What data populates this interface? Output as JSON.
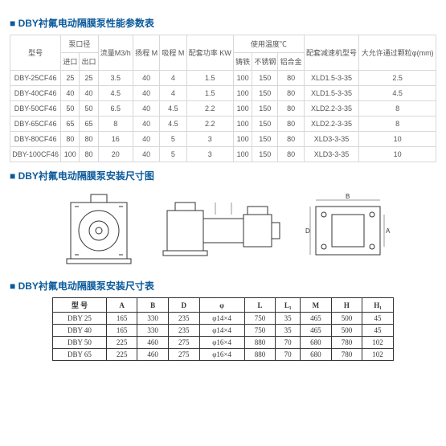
{
  "titles": {
    "perf": "DBY衬氟电动隔膜泵性能参数表",
    "dim_diagram": "DBY衬氟电动隔膜泵安装尺寸图",
    "dim_table": "DBY衬氟电动隔膜泵安装尺寸表"
  },
  "perf_header": {
    "model": "型号",
    "caliber": "泵口径",
    "in": "进口",
    "out": "出口",
    "flow": "流量M3/h",
    "head": "扬程 M",
    "suction": "吸程 M",
    "power": "配套功率 KW",
    "temp": "使用温度℃",
    "t1": "铸铁",
    "t2": "不锈钢",
    "t3": "铝合金",
    "reducer": "配套减速机型号",
    "particle": "大允许通过颗粒φ(mm)"
  },
  "perf_rows": [
    {
      "m": "DBY-25CF46",
      "in": "25",
      "out": "25",
      "flow": "3.5",
      "head": "40",
      "suc": "4",
      "pow": "1.5",
      "t1": "100",
      "t2": "150",
      "t3": "80",
      "red": "XLD1.5-3-35",
      "par": "2.5"
    },
    {
      "m": "DBY-40CF46",
      "in": "40",
      "out": "40",
      "flow": "4.5",
      "head": "40",
      "suc": "4",
      "pow": "1.5",
      "t1": "100",
      "t2": "150",
      "t3": "80",
      "red": "XLD1.5-3-35",
      "par": "4.5"
    },
    {
      "m": "DBY-50CF46",
      "in": "50",
      "out": "50",
      "flow": "6.5",
      "head": "40",
      "suc": "4.5",
      "pow": "2.2",
      "t1": "100",
      "t2": "150",
      "t3": "80",
      "red": "XLD2.2-3-35",
      "par": "8"
    },
    {
      "m": "DBY-65CF46",
      "in": "65",
      "out": "65",
      "flow": "8",
      "head": "40",
      "suc": "4.5",
      "pow": "2.2",
      "t1": "100",
      "t2": "150",
      "t3": "80",
      "red": "XLD2.2-3-35",
      "par": "8"
    },
    {
      "m": "DBY-80CF46",
      "in": "80",
      "out": "80",
      "flow": "16",
      "head": "40",
      "suc": "5",
      "pow": "3",
      "t1": "100",
      "t2": "150",
      "t3": "80",
      "red": "XLD3-3-35",
      "par": "10"
    },
    {
      "m": "DBY-100CF46",
      "in": "100",
      "out": "80",
      "flow": "20",
      "head": "40",
      "suc": "5",
      "pow": "3",
      "t1": "100",
      "t2": "150",
      "t3": "80",
      "red": "XLD3-3-35",
      "par": "10"
    }
  ],
  "dim_header": {
    "m": "型 号",
    "A": "A",
    "B": "B",
    "D": "D",
    "phi": "φ",
    "L": "L",
    "L1": "L₁",
    "M": "M",
    "H": "H",
    "H1": "H₁"
  },
  "dim_rows": [
    {
      "m": "DBY 25",
      "A": "165",
      "B": "330",
      "D": "235",
      "phi": "φ14×4",
      "L": "750",
      "L1": "35",
      "M": "465",
      "H": "500",
      "H1": "45"
    },
    {
      "m": "DBY 40",
      "A": "165",
      "B": "330",
      "D": "235",
      "phi": "φ14×4",
      "L": "750",
      "L1": "35",
      "M": "465",
      "H": "500",
      "H1": "45"
    },
    {
      "m": "DBY 50",
      "A": "225",
      "B": "460",
      "D": "275",
      "phi": "φ16×4",
      "L": "880",
      "L1": "70",
      "M": "680",
      "H": "780",
      "H1": "102"
    },
    {
      "m": "DBY 65",
      "A": "225",
      "B": "460",
      "D": "275",
      "phi": "φ16×4",
      "L": "880",
      "L1": "70",
      "M": "680",
      "H": "780",
      "H1": "102"
    }
  ]
}
